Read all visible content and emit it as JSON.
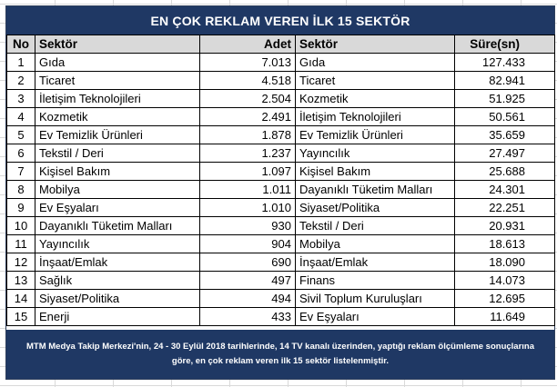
{
  "title": "EN ÇOK REKLAM VEREN İLK 15 SEKTÖR",
  "headers": {
    "no": "No",
    "sector_a": "Sektör",
    "count": "Adet",
    "sector_b": "Sektör",
    "duration": "Süre(sn)"
  },
  "rows": [
    {
      "no": "1",
      "sector_a": "Gıda",
      "count": "7.013",
      "sector_b": "Gıda",
      "duration": "127.433"
    },
    {
      "no": "2",
      "sector_a": "Ticaret",
      "count": "4.518",
      "sector_b": "Ticaret",
      "duration": "82.941"
    },
    {
      "no": "3",
      "sector_a": "İletişim Teknolojileri",
      "count": "2.504",
      "sector_b": "Kozmetik",
      "duration": "51.925"
    },
    {
      "no": "4",
      "sector_a": "Kozmetik",
      "count": "2.491",
      "sector_b": "İletişim Teknolojileri",
      "duration": "50.561"
    },
    {
      "no": "5",
      "sector_a": "Ev Temizlik Ürünleri",
      "count": "1.878",
      "sector_b": "Ev Temizlik Ürünleri",
      "duration": "35.659"
    },
    {
      "no": "6",
      "sector_a": "Tekstil / Deri",
      "count": "1.237",
      "sector_b": "Yayıncılık",
      "duration": "27.497"
    },
    {
      "no": "7",
      "sector_a": "Kişisel Bakım",
      "count": "1.097",
      "sector_b": "Kişisel Bakım",
      "duration": "25.688"
    },
    {
      "no": "8",
      "sector_a": "Mobilya",
      "count": "1.011",
      "sector_b": "Dayanıklı Tüketim Malları",
      "duration": "24.301"
    },
    {
      "no": "9",
      "sector_a": "Ev Eşyaları",
      "count": "1.010",
      "sector_b": "Siyaset/Politika",
      "duration": "22.251"
    },
    {
      "no": "10",
      "sector_a": "Dayanıklı Tüketim Malları",
      "count": "930",
      "sector_b": "Tekstil / Deri",
      "duration": "20.931"
    },
    {
      "no": "11",
      "sector_a": "Yayıncılık",
      "count": "904",
      "sector_b": "Mobilya",
      "duration": "18.613"
    },
    {
      "no": "12",
      "sector_a": "İnşaat/Emlak",
      "count": "690",
      "sector_b": "İnşaat/Emlak",
      "duration": "18.090"
    },
    {
      "no": "13",
      "sector_a": "Sağlık",
      "count": "497",
      "sector_b": "Finans",
      "duration": "14.073"
    },
    {
      "no": "14",
      "sector_a": "Siyaset/Politika",
      "count": "494",
      "sector_b": "Sivil Toplum Kuruluşları",
      "duration": "12.695"
    },
    {
      "no": "15",
      "sector_a": "Enerji",
      "count": "433",
      "sector_b": "Ev Eşyaları",
      "duration": "11.649"
    }
  ],
  "footer": {
    "line1": "MTM Medya Takip Merkezi'nin, 24 - 30 Eylül 2018 tarihlerinde, 14 TV kanalı üzerinden,  yaptığı reklam ölçümleme sonuçlarına",
    "line2": "göre, en çok reklam veren ilk 15 sektör  listelenmiştir."
  },
  "colors": {
    "title_bg": "#1f3864",
    "header_bg": "#d9d9d9",
    "footer_bg": "#1f3864"
  }
}
